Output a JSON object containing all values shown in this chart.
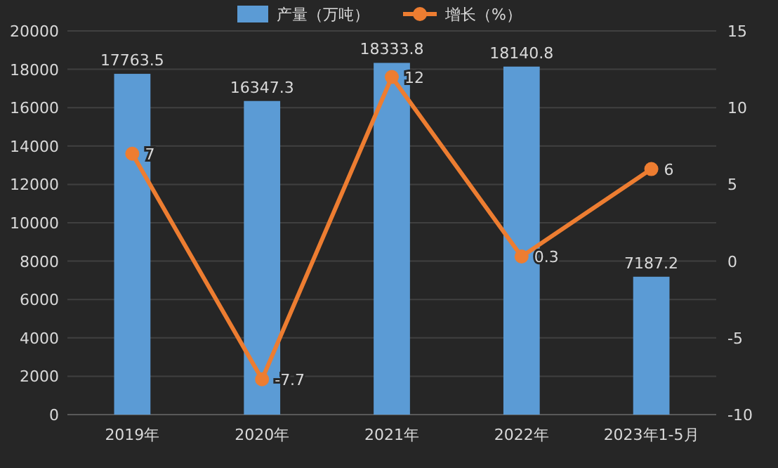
{
  "chart_data": {
    "type": "bar",
    "categories": [
      "2019年",
      "2020年",
      "2021年",
      "2022年",
      "2023年1-5月"
    ],
    "series": [
      {
        "name": "产量（万吨）",
        "color": "#5b9bd5",
        "values": [
          17763.5,
          16347.3,
          18333.8,
          18140.8,
          7187.2
        ]
      },
      {
        "name": "增长（%）",
        "type": "line",
        "axis": "y2",
        "color": "#ed7d31",
        "values": [
          7,
          -7.7,
          12,
          0.3,
          6
        ],
        "marker": "circle"
      }
    ],
    "data_labels": true,
    "ylim": [
      0,
      20000
    ],
    "yticks": [
      0,
      2000,
      4000,
      6000,
      8000,
      10000,
      12000,
      14000,
      16000,
      18000,
      20000
    ],
    "y2lim": [
      -10,
      15
    ],
    "y2ticks": [
      -10,
      -5,
      0,
      5,
      10,
      15
    ],
    "grid": "y",
    "legend": "top"
  }
}
